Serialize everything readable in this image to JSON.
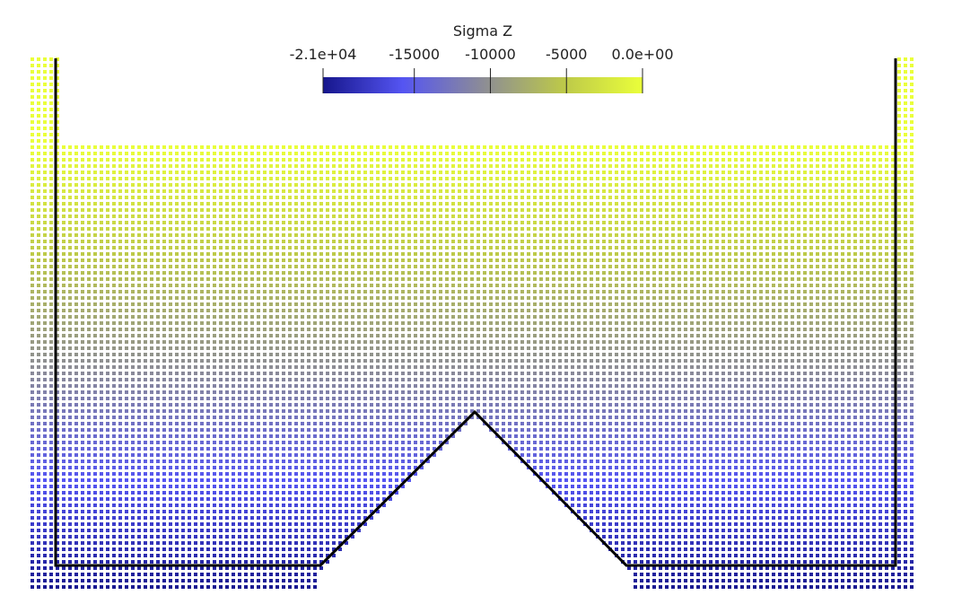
{
  "colorbar": {
    "title": "Sigma Z",
    "range": [
      -21000,
      0
    ],
    "ticks": [
      {
        "value": -21000,
        "label": "-2.1e+04"
      },
      -15000,
      -10000,
      -5000,
      {
        "value": 0,
        "label": "0.0e+00"
      }
    ],
    "colormap": [
      "#16168c",
      "#5555f2",
      "#8c8c96",
      "#bcc84a",
      "#eaff3a"
    ]
  }
}
